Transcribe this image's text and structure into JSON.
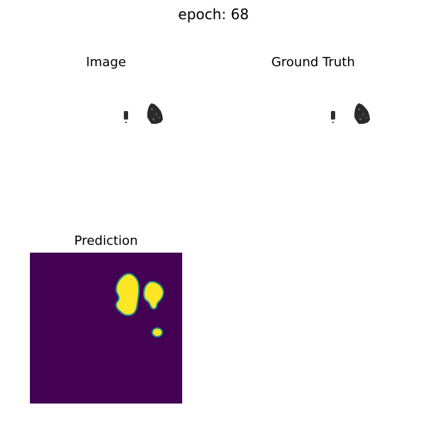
{
  "figure": {
    "suptitle": "epoch: 68"
  },
  "panels": {
    "image": {
      "title": "Image"
    },
    "ground_truth": {
      "title": "Ground Truth"
    },
    "prediction": {
      "title": "Prediction"
    }
  },
  "colors": {
    "background": "#ffffff",
    "lesion_gray": "#3a3a3a",
    "prediction_background": "#440154",
    "prediction_foreground": "#fde725",
    "prediction_edge": "#21918c"
  }
}
